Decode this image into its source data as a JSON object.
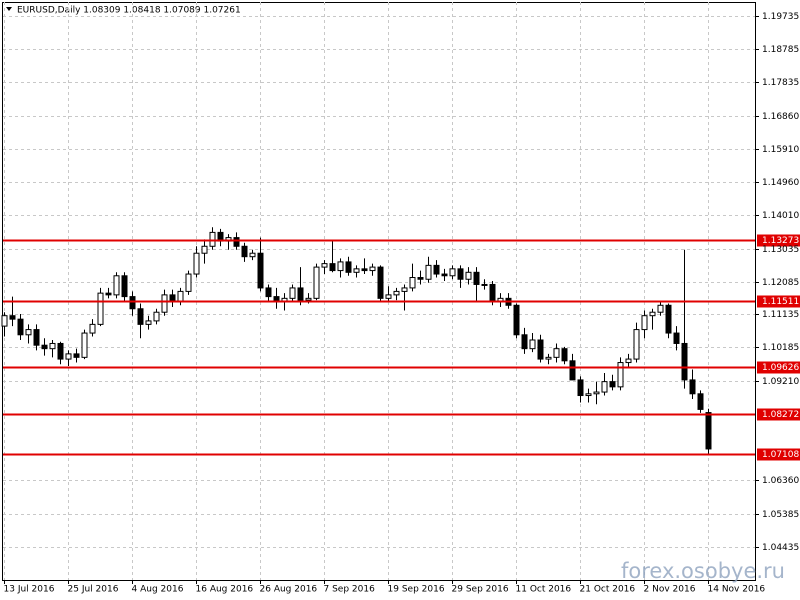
{
  "chart_data": {
    "type": "candlestick",
    "title": "EURUSD,Daily  1.08309 1.08418 1.07089 1.07261",
    "watermark": "forex.osobye.ru",
    "categories": [
      "13 Jul 2016",
      null,
      null,
      null,
      null,
      null,
      null,
      null,
      "25 Jul 2016",
      null,
      null,
      null,
      null,
      null,
      null,
      null,
      "4 Aug 2016",
      null,
      null,
      null,
      null,
      null,
      null,
      null,
      "16 Aug 2016",
      null,
      null,
      null,
      null,
      null,
      null,
      null,
      "26 Aug 2016",
      null,
      null,
      null,
      null,
      null,
      null,
      null,
      "7 Sep 2016",
      null,
      null,
      null,
      null,
      null,
      null,
      null,
      "19 Sep 2016",
      null,
      null,
      null,
      null,
      null,
      null,
      null,
      "29 Sep 2016",
      null,
      null,
      null,
      null,
      null,
      null,
      null,
      "11 Oct 2016",
      null,
      null,
      null,
      null,
      null,
      null,
      null,
      "21 Oct 2016",
      null,
      null,
      null,
      null,
      null,
      null,
      null,
      "2 Nov 2016",
      null,
      null,
      null,
      null,
      null,
      null,
      null,
      "14 Nov 2016"
    ],
    "open": [
      1.108,
      1.111,
      1.11,
      1.1055,
      1.107,
      1.1025,
      1.1015,
      1.103,
      1.0985,
      1.1,
      1.099,
      1.106,
      1.1085,
      1.1175,
      1.117,
      1.1225,
      1.1165,
      1.113,
      1.1085,
      1.1095,
      1.112,
      1.117,
      1.115,
      1.118,
      1.123,
      1.129,
      1.131,
      1.135,
      1.1325,
      1.1335,
      1.131,
      1.128,
      1.129,
      1.119,
      1.1165,
      1.115,
      1.116,
      1.119,
      1.1155,
      1.116,
      1.125,
      1.126,
      1.124,
      1.1265,
      1.1235,
      1.1245,
      1.124,
      1.125,
      1.116,
      1.117,
      1.118,
      1.119,
      1.122,
      1.1215,
      1.1255,
      1.123,
      1.1225,
      1.1245,
      1.1215,
      1.1235,
      1.12,
      1.12,
      1.115,
      1.116,
      1.114,
      1.1055,
      1.1015,
      1.104,
      1.0985,
      1.099,
      1.1015,
      1.098,
      1.0925,
      1.088,
      1.0885,
      1.089,
      1.092,
      1.0905,
      1.0975,
      1.0985,
      1.107,
      1.111,
      1.112,
      1.114,
      1.106,
      1.103,
      1.0925,
      1.0885,
      1.08309
    ],
    "high": [
      1.112,
      1.1165,
      1.1115,
      1.1085,
      1.1085,
      1.1045,
      1.104,
      1.1035,
      1.101,
      1.1015,
      1.107,
      1.11,
      1.119,
      1.119,
      1.1235,
      1.1235,
      1.118,
      1.1145,
      1.111,
      1.113,
      1.1185,
      1.1185,
      1.119,
      1.124,
      1.131,
      1.133,
      1.1365,
      1.136,
      1.1345,
      1.135,
      1.132,
      1.13,
      1.1335,
      1.12,
      1.119,
      1.1175,
      1.12,
      1.125,
      1.1175,
      1.126,
      1.127,
      1.1325,
      1.1275,
      1.128,
      1.1255,
      1.1275,
      1.126,
      1.1255,
      1.1195,
      1.119,
      1.12,
      1.126,
      1.124,
      1.128,
      1.127,
      1.1245,
      1.1255,
      1.1255,
      1.125,
      1.125,
      1.1215,
      1.121,
      1.1175,
      1.1175,
      1.1145,
      1.1075,
      1.106,
      1.1055,
      1.1,
      1.103,
      1.102,
      1.1,
      1.0935,
      1.09,
      1.092,
      1.0945,
      1.094,
      1.099,
      1.1,
      1.109,
      1.1125,
      1.113,
      1.115,
      1.1145,
      1.108,
      1.13,
      1.0955,
      1.0895,
      1.08418
    ],
    "low": [
      1.105,
      1.108,
      1.104,
      1.103,
      1.101,
      1.0995,
      1.099,
      1.097,
      1.0965,
      1.0975,
      1.0985,
      1.105,
      1.108,
      1.116,
      1.116,
      1.115,
      1.111,
      1.1045,
      1.107,
      1.1085,
      1.111,
      1.1135,
      1.114,
      1.117,
      1.122,
      1.126,
      1.13,
      1.131,
      1.13,
      1.13,
      1.1265,
      1.127,
      1.118,
      1.115,
      1.113,
      1.1125,
      1.115,
      1.114,
      1.1145,
      1.1155,
      1.123,
      1.1235,
      1.122,
      1.1225,
      1.122,
      1.123,
      1.1225,
      1.115,
      1.115,
      1.1155,
      1.1125,
      1.118,
      1.12,
      1.1205,
      1.122,
      1.121,
      1.1215,
      1.119,
      1.12,
      1.115,
      1.1185,
      1.114,
      1.1135,
      1.113,
      1.1045,
      1.1,
      1.1005,
      1.0975,
      1.097,
      1.0975,
      1.097,
      1.0925,
      1.086,
      1.086,
      1.0855,
      1.088,
      1.0895,
      1.0895,
      1.096,
      1.0975,
      1.1045,
      1.107,
      1.111,
      1.1045,
      1.101,
      1.09,
      1.087,
      1.083,
      1.07089
    ],
    "close": [
      1.111,
      1.11,
      1.1055,
      1.107,
      1.1025,
      1.1015,
      1.103,
      1.0985,
      1.1,
      1.099,
      1.106,
      1.1085,
      1.1175,
      1.117,
      1.1225,
      1.1165,
      1.113,
      1.1085,
      1.1095,
      1.112,
      1.117,
      1.115,
      1.118,
      1.123,
      1.129,
      1.131,
      1.135,
      1.1325,
      1.1335,
      1.131,
      1.128,
      1.129,
      1.119,
      1.1165,
      1.115,
      1.116,
      1.119,
      1.1155,
      1.116,
      1.125,
      1.126,
      1.124,
      1.1265,
      1.1235,
      1.1245,
      1.124,
      1.125,
      1.116,
      1.117,
      1.118,
      1.119,
      1.122,
      1.1215,
      1.1255,
      1.123,
      1.1225,
      1.1245,
      1.1215,
      1.1235,
      1.12,
      1.12,
      1.115,
      1.116,
      1.114,
      1.1055,
      1.1015,
      1.104,
      1.0985,
      1.099,
      1.1015,
      1.098,
      1.0925,
      1.088,
      1.0885,
      1.089,
      1.092,
      1.0905,
      1.0975,
      1.0985,
      1.107,
      1.111,
      1.112,
      1.114,
      1.106,
      1.103,
      1.0925,
      1.0885,
      1.084,
      1.07261
    ],
    "up_color": "#ffffff",
    "down_color": "#000000",
    "levels": [
      1.13273,
      1.11511,
      1.09626,
      1.08272,
      1.07108
    ],
    "level_color": "#e00000",
    "ylim": [
      1.03485,
      1.20138
    ],
    "yticks": [
      {
        "value": 1.19735,
        "label": "1.19735"
      },
      {
        "value": 1.18785,
        "label": "1.18785"
      },
      {
        "value": 1.17835,
        "label": "1.17835"
      },
      {
        "value": 1.1686,
        "label": "1.16860"
      },
      {
        "value": 1.1591,
        "label": "1.15910"
      },
      {
        "value": 1.1496,
        "label": "1.14960"
      },
      {
        "value": 1.1401,
        "label": "1.14010"
      },
      {
        "value": 1.13035,
        "label": "1.13035"
      },
      {
        "value": 1.12085,
        "label": "1.12085"
      },
      {
        "value": 1.11135,
        "label": "1.11135"
      },
      {
        "value": 1.10185,
        "label": "1.10185"
      },
      {
        "value": 1.0921,
        "label": "1.09210"
      },
      {
        "value": 1.0636,
        "label": "1.06360"
      },
      {
        "value": 1.05385,
        "label": "1.05385"
      },
      {
        "value": 1.04435,
        "label": "1.04435"
      }
    ],
    "grid": true
  }
}
